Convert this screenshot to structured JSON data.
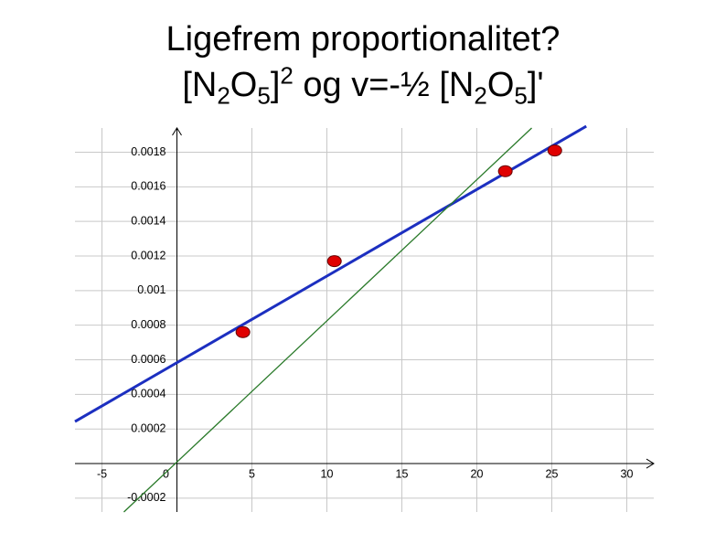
{
  "title_line1": "Ligefrem proportionalitet?",
  "title_line2": [
    {
      "text": "[N"
    },
    {
      "sub": "2"
    },
    {
      "text": "O"
    },
    {
      "sub": "5"
    },
    {
      "text": "]"
    },
    {
      "sup": "2"
    },
    {
      "text": " og v=-½ [N"
    },
    {
      "sub": "2"
    },
    {
      "text": "O"
    },
    {
      "sub": "5"
    },
    {
      "text": "]'"
    }
  ],
  "chart_data": {
    "type": "scatter",
    "x": [
      4.4,
      10.5,
      21.9,
      25.2
    ],
    "values": [
      0.00076,
      0.00117,
      0.00169,
      0.00181
    ],
    "color": "#e00000",
    "lines": [
      {
        "color": "#1c2fc0",
        "x": [
          -6.8,
          27.3
        ],
        "values": [
          0.000243,
          0.00195
        ]
      },
      {
        "color": "#2a7a2a",
        "x": [
          -3.54,
          23.66
        ],
        "values": [
          -0.00028,
          0.00194
        ]
      }
    ],
    "xlim": [
      -6.8,
      31.8
    ],
    "ylim": [
      -0.00028,
      0.00194
    ],
    "xticks": [
      -5,
      0,
      5,
      10,
      15,
      20,
      25,
      30
    ],
    "yticks": [
      -0.0002,
      0.0002,
      0.0004,
      0.0006,
      0.0008,
      0.001,
      0.0012,
      0.0014,
      0.0016,
      0.0018
    ],
    "grid": true
  }
}
